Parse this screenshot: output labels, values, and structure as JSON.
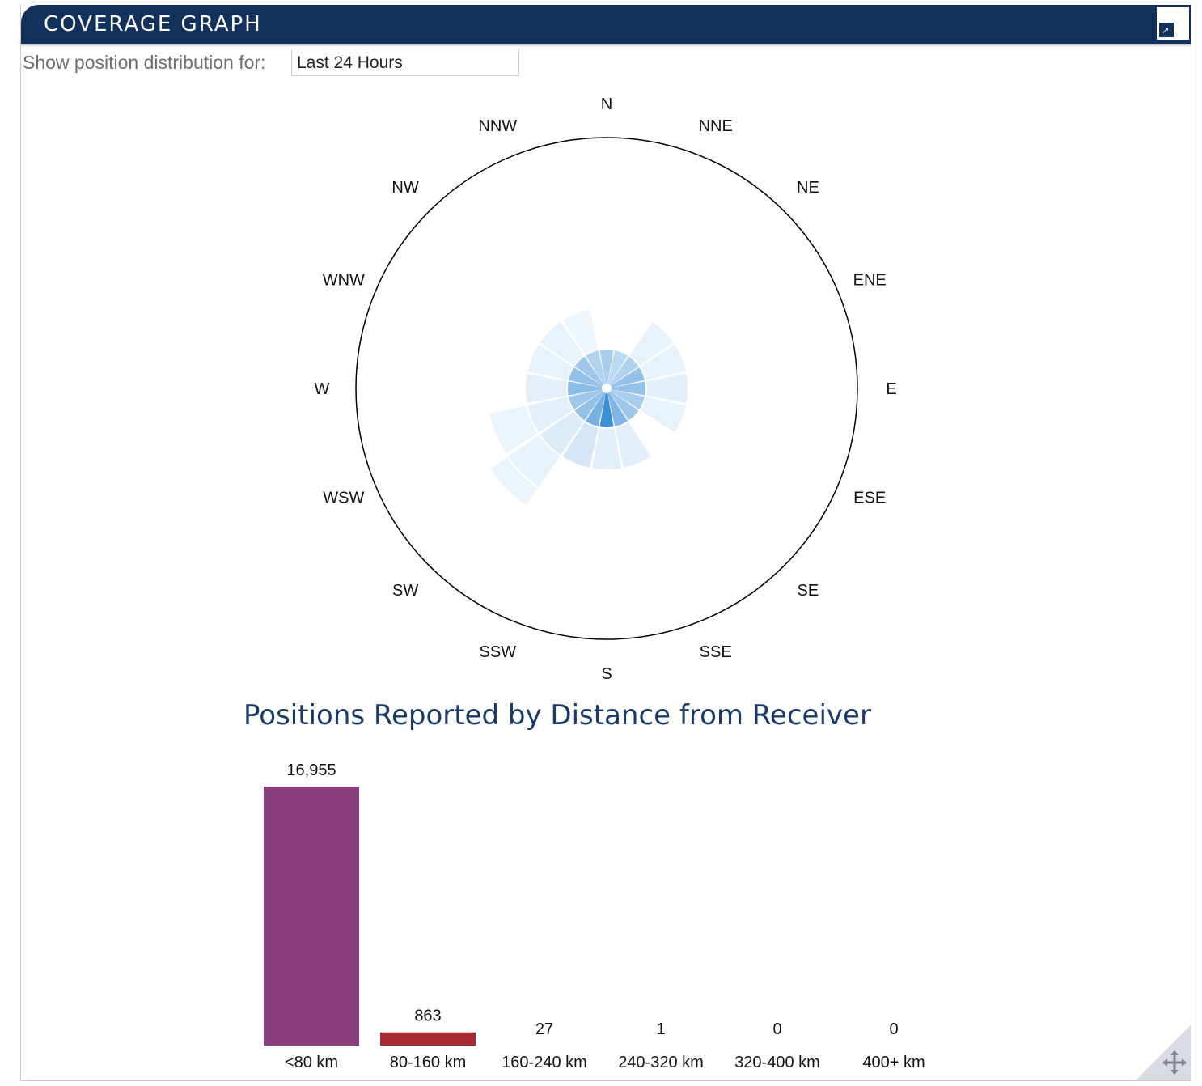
{
  "header": {
    "title": "COVERAGE GRAPH",
    "expand_icon": "expand-icon"
  },
  "filter": {
    "label": "Show position distribution for:",
    "selected": "Last 24 Hours"
  },
  "rose": {
    "directions": [
      "N",
      "NNE",
      "NE",
      "ENE",
      "E",
      "ESE",
      "SE",
      "SSE",
      "S",
      "SSW",
      "SW",
      "WSW",
      "W",
      "WNW",
      "NW",
      "NNW"
    ],
    "rings": [
      {
        "band": "<80 km",
        "intensity": [
          0.45,
          0.35,
          0.4,
          0.55,
          0.55,
          0.45,
          0.5,
          0.65,
          1.0,
          0.7,
          0.55,
          0.5,
          0.6,
          0.55,
          0.5,
          0.4
        ]
      },
      {
        "band": "80-160 km",
        "intensity": [
          0,
          0,
          0.12,
          0.12,
          0.15,
          0.12,
          0,
          0.15,
          0.15,
          0.22,
          0.18,
          0.14,
          0.14,
          0.12,
          0.12,
          0.08
        ]
      },
      {
        "band": "160-240 km",
        "intensity": [
          0,
          0,
          0,
          0,
          0,
          0,
          0,
          0,
          0,
          0,
          0.12,
          0.1,
          0,
          0,
          0,
          0
        ]
      },
      {
        "band": "240-320 km",
        "intensity": [
          0,
          0,
          0,
          0,
          0,
          0,
          0,
          0,
          0,
          0,
          0.1,
          0,
          0,
          0,
          0,
          0
        ]
      }
    ],
    "fill_color": "#3d8fd6"
  },
  "bar_title": "Positions Reported by Distance from Receiver",
  "chart_data": {
    "type": "bar",
    "title": "Positions Reported by Distance from Receiver",
    "categories": [
      "<80 km",
      "80-160 km",
      "160-240 km",
      "240-320 km",
      "320-400 km",
      "400+ km"
    ],
    "values": [
      16955,
      863,
      27,
      1,
      0,
      0
    ],
    "value_labels": [
      "16,955",
      "863",
      "27",
      "1",
      "0",
      "0"
    ],
    "colors": [
      "#893e7e",
      "#a62a33",
      "#888888",
      "#888888",
      "#888888",
      "#888888"
    ],
    "ylim": [
      0,
      16955
    ]
  },
  "resize_icon": "move-icon"
}
